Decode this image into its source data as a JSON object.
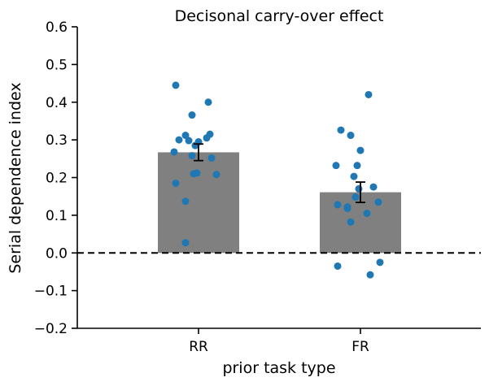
{
  "chart_data": {
    "type": "bar",
    "title": "Decisonal carry-over effect",
    "xlabel": "prior task type",
    "ylabel": "Serial dependence index",
    "categories": [
      "RR",
      "FR"
    ],
    "values": [
      0.267,
      0.161
    ],
    "errors": [
      0.022,
      0.027
    ],
    "ylim": [
      -0.2,
      0.6
    ],
    "yticks": [
      -0.2,
      -0.1,
      0.0,
      0.1,
      0.2,
      0.3,
      0.4,
      0.5,
      0.6
    ],
    "ytick_labels": [
      "−0.2",
      "−0.1",
      "0.0",
      "0.1",
      "0.2",
      "0.3",
      "0.4",
      "0.5",
      "0.6"
    ],
    "reference_line": 0.0,
    "grid": false,
    "bar_color": "#808080",
    "point_color": "#1f77b4",
    "points": [
      {
        "category": "RR",
        "values": [
          0.445,
          0.4,
          0.366,
          0.315,
          0.312,
          0.305,
          0.3,
          0.298,
          0.295,
          0.285,
          0.268,
          0.258,
          0.252,
          0.212,
          0.21,
          0.208,
          0.185,
          0.137,
          0.027
        ]
      },
      {
        "category": "FR",
        "values": [
          0.42,
          0.326,
          0.312,
          0.272,
          0.232,
          0.232,
          0.203,
          0.175,
          0.17,
          0.148,
          0.135,
          0.128,
          0.122,
          0.118,
          0.105,
          0.082,
          -0.025,
          -0.035,
          -0.058
        ]
      }
    ]
  }
}
